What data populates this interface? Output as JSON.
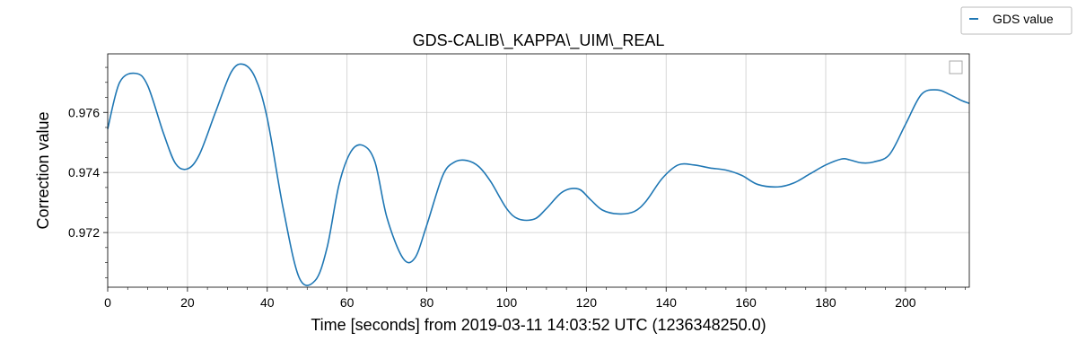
{
  "chart_data": {
    "type": "line",
    "title": "GDS-CALIB\\_KAPPA\\_UIM\\_REAL",
    "xlabel": "Time [seconds] from 2019-03-11 14:03:52 UTC (1236348250.0)",
    "ylabel": "Correction value",
    "xlim": [
      0,
      216
    ],
    "ylim": [
      0.97018,
      0.97795
    ],
    "xticks": [
      0,
      20,
      40,
      60,
      80,
      100,
      120,
      140,
      160,
      180,
      200
    ],
    "xtick_labels": [
      "0",
      "20",
      "40",
      "60",
      "80",
      "100",
      "120",
      "140",
      "160",
      "180",
      "200"
    ],
    "yticks": [
      0.972,
      0.974,
      0.976
    ],
    "ytick_labels": [
      "0.972",
      "0.974",
      "0.976"
    ],
    "grid": true,
    "legend_position": "outside-top-right",
    "series": [
      {
        "name": "GDS value",
        "color": "#1f77b4",
        "x": [
          0,
          3,
          7,
          10,
          14,
          17,
          20,
          23,
          27,
          31,
          34,
          37,
          40,
          44,
          48,
          52,
          55,
          58,
          61,
          64,
          67,
          70,
          74,
          77,
          80,
          84,
          87,
          90,
          93,
          96,
          100,
          103,
          107,
          110,
          114,
          118,
          121,
          124,
          128,
          132,
          135,
          139,
          143,
          147,
          151,
          155,
          159,
          163,
          168,
          172,
          176,
          180,
          184,
          186,
          189,
          192,
          196,
          200,
          204,
          208,
          211,
          214,
          216
        ],
        "y": [
          0.97545,
          0.977,
          0.9773,
          0.9769,
          0.9753,
          0.9743,
          0.97412,
          0.9746,
          0.976,
          0.97735,
          0.9776,
          0.97715,
          0.9758,
          0.9728,
          0.9705,
          0.9704,
          0.9715,
          0.9736,
          0.9747,
          0.9749,
          0.97435,
          0.9725,
          0.97115,
          0.97115,
          0.97225,
          0.9739,
          0.97435,
          0.9744,
          0.9742,
          0.9737,
          0.9728,
          0.97245,
          0.97245,
          0.9728,
          0.97335,
          0.97345,
          0.9731,
          0.97275,
          0.97262,
          0.9727,
          0.97305,
          0.9738,
          0.97425,
          0.97425,
          0.97415,
          0.97408,
          0.9739,
          0.9736,
          0.97352,
          0.97365,
          0.97395,
          0.97425,
          0.97445,
          0.97442,
          0.97432,
          0.97435,
          0.9746,
          0.9756,
          0.9766,
          0.97675,
          0.9766,
          0.9764,
          0.9763
        ]
      }
    ]
  }
}
